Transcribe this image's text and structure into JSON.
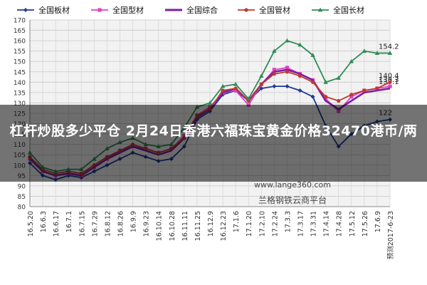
{
  "chart_data": {
    "type": "line",
    "title": "",
    "xlabel": "",
    "ylabel": "",
    "ylim": [
      80,
      170
    ],
    "yticks": [
      80,
      85,
      90,
      95,
      100,
      105,
      110,
      115,
      120,
      125,
      130,
      135,
      140,
      145,
      150,
      155,
      160,
      165,
      170
    ],
    "legend_position": "top",
    "grid": true,
    "x_tick_labels": [
      "16.5.20",
      "16.6.3",
      "16.6.17",
      "16.7.1",
      "16.7.15",
      "16.7.29",
      "16.8.12",
      "16.8.26",
      "16.9.9",
      "16.9.23",
      "16.10.14",
      "16.10.28",
      "16.11.11",
      "16.11.25",
      "16.12.9",
      "16.12.23",
      "17.1.6",
      "17.1.20",
      "17.2.10",
      "17.2.24",
      "17.3.3",
      "17.3.17",
      "17.3.31",
      "17.4.14",
      "17.4.28",
      "17.5.12",
      "17.5.26",
      "17.6.9",
      "预测2017-6-23"
    ],
    "series": [
      {
        "name": "全国板材",
        "color": "#1F3A93",
        "marker": "diamond",
        "values": [
          101,
          95,
          93,
          95,
          94,
          97,
          100,
          103,
          106,
          104,
          102,
          103,
          109,
          122,
          126,
          134,
          136,
          131,
          137,
          138,
          138,
          136,
          133,
          119,
          109,
          115,
          119,
          121,
          122
        ],
        "end_label": "122"
      },
      {
        "name": "全国型材",
        "color": "#E040C8",
        "marker": "square",
        "values": [
          103,
          97,
          95,
          96,
          95,
          99,
          103,
          107,
          109,
          108,
          106,
          108,
          114,
          124,
          128,
          135,
          136,
          129,
          139,
          146,
          147,
          144,
          141,
          132,
          126,
          133,
          136,
          137,
          138
        ],
        "end_label": "138.3"
      },
      {
        "name": "全国综合",
        "color": "#7B1FA2",
        "marker": "line",
        "values": [
          103,
          97,
          95,
          96,
          95,
          99,
          103,
          106,
          109,
          107,
          105,
          107,
          113,
          123,
          127,
          135,
          137,
          131,
          139,
          145,
          146,
          144,
          141,
          131,
          127,
          131,
          135,
          136,
          137
        ],
        "end_label": "137.1"
      },
      {
        "name": "全国管材",
        "color": "#C0392B",
        "marker": "circle",
        "values": [
          104,
          98,
          96,
          97,
          96,
          100,
          104,
          107,
          110,
          108,
          106,
          108,
          113,
          124,
          127,
          136,
          137,
          131,
          139,
          144,
          145,
          143,
          140,
          133,
          131,
          134,
          136,
          137,
          140
        ],
        "end_label": "140.4"
      },
      {
        "name": "全国长材",
        "color": "#2E8B57",
        "marker": "triangle",
        "values": [
          106,
          99,
          97,
          98,
          98,
          103,
          108,
          111,
          113,
          110,
          109,
          110,
          118,
          128,
          130,
          138,
          139,
          132,
          143,
          155,
          160,
          158,
          153,
          140,
          142,
          150,
          155,
          154,
          154
        ],
        "end_label": "154.2"
      }
    ]
  },
  "banner_text": "杠杆炒股多少平仓 2月24日香港六福珠宝黄金价格32470港币/两",
  "watermark": {
    "site": "www.lange360.com",
    "name": "兰格钢铁云商平台"
  }
}
